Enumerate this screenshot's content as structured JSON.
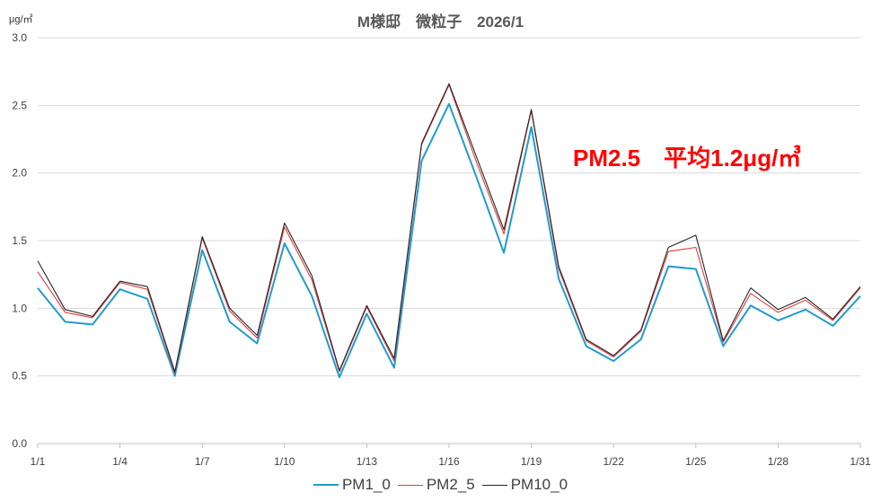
{
  "chart_data": {
    "type": "line",
    "title": "M様邸　微粒子　2026/1",
    "unit_label": "μg/㎥",
    "annotation": "PM2.5　平均1.2μg/㎥",
    "ylim": [
      0,
      3.0
    ],
    "y_ticks": [
      "0.0",
      "0.5",
      "1.0",
      "1.5",
      "2.0",
      "2.5",
      "3.0"
    ],
    "x_tick_labels": [
      "1/1",
      "1/4",
      "1/7",
      "1/10",
      "1/13",
      "1/16",
      "1/19",
      "1/22",
      "1/25",
      "1/28",
      "1/31"
    ],
    "x_tick_days": [
      1,
      4,
      7,
      10,
      13,
      16,
      19,
      22,
      25,
      28,
      31
    ],
    "grid": true,
    "legend_position": "bottom",
    "series": [
      {
        "name": "PM1_0",
        "color": "#1f9bd0",
        "values": [
          1.15,
          0.9,
          0.88,
          1.14,
          1.07,
          0.5,
          1.43,
          0.9,
          0.74,
          1.48,
          1.09,
          0.49,
          0.96,
          0.56,
          2.09,
          2.51,
          1.97,
          1.41,
          2.34,
          1.22,
          0.72,
          0.61,
          0.77,
          1.31,
          1.29,
          0.72,
          1.02,
          0.91,
          0.99,
          0.87,
          1.09
        ]
      },
      {
        "name": "PM2_5",
        "color": "#e03c3c",
        "values": [
          1.27,
          0.97,
          0.93,
          1.19,
          1.14,
          0.52,
          1.52,
          0.98,
          0.78,
          1.6,
          1.21,
          0.53,
          1.01,
          0.61,
          2.21,
          2.65,
          2.08,
          1.55,
          2.46,
          1.29,
          0.76,
          0.64,
          0.83,
          1.42,
          1.45,
          0.75,
          1.11,
          0.97,
          1.06,
          0.91,
          1.15
        ]
      },
      {
        "name": "PM10_0",
        "color": "#262626",
        "values": [
          1.35,
          0.99,
          0.94,
          1.2,
          1.16,
          0.53,
          1.53,
          1.0,
          0.8,
          1.63,
          1.24,
          0.54,
          1.02,
          0.63,
          2.22,
          2.66,
          2.12,
          1.58,
          2.47,
          1.31,
          0.77,
          0.65,
          0.84,
          1.45,
          1.54,
          0.76,
          1.15,
          0.99,
          1.08,
          0.92,
          1.16
        ]
      }
    ]
  }
}
